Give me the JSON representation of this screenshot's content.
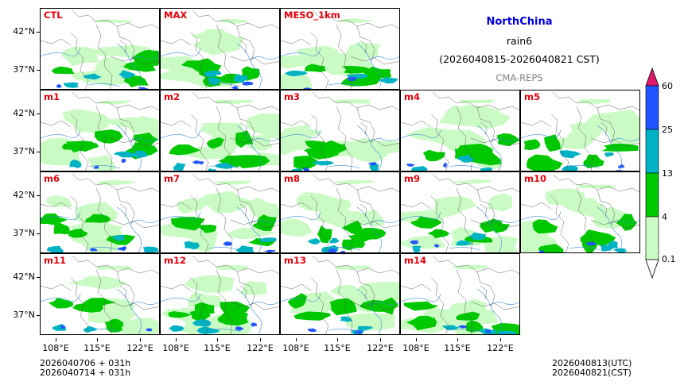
{
  "title": {
    "region": "NorthChina",
    "variable": "rain6",
    "period": "(2026040815-2026040821 CST)",
    "source": "CMA-REPS"
  },
  "members": [
    "CTL",
    "MAX",
    "MESO_1km",
    "m1",
    "m2",
    "m3",
    "m4",
    "m5",
    "m6",
    "m7",
    "m8",
    "m9",
    "m10",
    "m11",
    "m12",
    "m13",
    "m14"
  ],
  "panel_grid": [
    [
      "CTL",
      "MAX",
      "MESO_1km"
    ],
    [
      "m1",
      "m2",
      "m3",
      "m4",
      "m5"
    ],
    [
      "m6",
      "m7",
      "m8",
      "m9",
      "m10"
    ],
    [
      "m11",
      "m12",
      "m13",
      "m14"
    ]
  ],
  "axes": {
    "lat_ticks": [
      "42°N",
      "37°N"
    ],
    "lon_ticks": [
      "108°E",
      "115°E",
      "122°E"
    ]
  },
  "colorbar": {
    "levels": [
      "0.1",
      "4",
      "13",
      "25",
      "60"
    ],
    "colors": [
      "#cbfbc4",
      "#00c800",
      "#00b3c4",
      "#2255ff",
      "#e0186c"
    ]
  },
  "footer": {
    "left_line1": "2026040706  +  031h",
    "left_line2": "2026040714  +  031h",
    "right_line1": "2026040813(UTC)",
    "right_line2": "2026040821(CST)"
  }
}
